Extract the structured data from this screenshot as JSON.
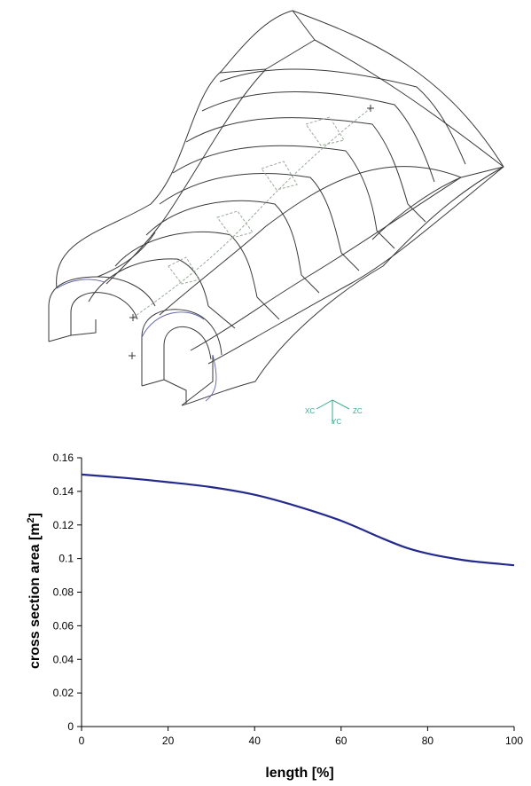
{
  "triad": {
    "x_label": "XC",
    "y_label": "YC",
    "z_label": "ZC"
  },
  "colors": {
    "wire": "#3a3a3a",
    "wire_blue": "#5b5fa6",
    "centerline": "#9aa89a",
    "triad": "#3aa88f",
    "curve": "#232a8c"
  },
  "chart_data": {
    "type": "line",
    "title": "",
    "xlabel": "length [%]",
    "ylabel_main": "cross section area [m",
    "ylabel_sup": "2",
    "ylabel_close": "]",
    "xlim": [
      0,
      100
    ],
    "ylim": [
      0,
      0.16
    ],
    "grid": false,
    "x_ticks": [
      0,
      20,
      40,
      60,
      80,
      100
    ],
    "y_ticks": [
      "0",
      "0.02",
      "0.04",
      "0.06",
      "0.08",
      "0.1",
      "0.12",
      "0.14",
      "0.16"
    ],
    "series": [
      {
        "x": [
          0,
          10,
          20,
          30,
          40,
          50,
          60,
          70,
          75,
          80,
          85,
          90,
          100
        ],
        "y": [
          0.15,
          0.148,
          0.1455,
          0.1425,
          0.138,
          0.131,
          0.1225,
          0.1115,
          0.1065,
          0.103,
          0.1005,
          0.0985,
          0.096
        ]
      }
    ]
  }
}
